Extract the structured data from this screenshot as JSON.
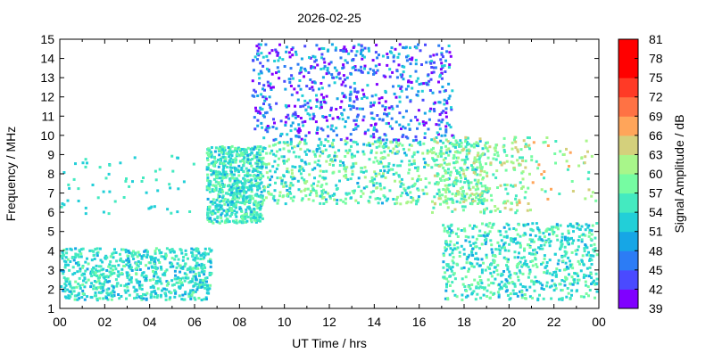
{
  "chart_data": {
    "type": "scatter",
    "subtype": "ionogram-heatmap",
    "title": "2026-02-25",
    "xlabel": "UT Time / hrs",
    "ylabel": "Frequency / MHz",
    "colorbar_label": "Signal Amplitude / dB",
    "xlim": [
      0,
      24
    ],
    "ylim": [
      1,
      15
    ],
    "x_ticks": [
      "00",
      "02",
      "04",
      "06",
      "08",
      "10",
      "12",
      "14",
      "16",
      "18",
      "20",
      "22",
      "00"
    ],
    "y_ticks": [
      "1",
      "2",
      "3",
      "4",
      "5",
      "6",
      "7",
      "8",
      "9",
      "10",
      "11",
      "12",
      "13",
      "14",
      "15"
    ],
    "colorbar_ticks": [
      "39",
      "42",
      "45",
      "48",
      "51",
      "54",
      "57",
      "60",
      "63",
      "66",
      "69",
      "72",
      "75",
      "78",
      "81"
    ],
    "colorbar_colors": [
      "#8000ff",
      "#4a4aff",
      "#2c7cf5",
      "#16a6e6",
      "#22cfd8",
      "#44eac0",
      "#76fca2",
      "#a8f68a",
      "#d4d07c",
      "#ffa55a",
      "#ff7244",
      "#ff3a26",
      "#ff0000",
      "#ff0000"
    ],
    "grid": false,
    "legend": "colorbar-right",
    "regions": [
      {
        "x": [
          0.0,
          6.7
        ],
        "y": [
          1.5,
          4.2
        ],
        "amp": [
          50,
          58
        ],
        "density": "high"
      },
      {
        "x": [
          6.5,
          9.0
        ],
        "y": [
          5.5,
          9.5
        ],
        "amp": [
          50,
          60
        ],
        "density": "high"
      },
      {
        "x": [
          9.0,
          19.0
        ],
        "y": [
          6.5,
          9.8
        ],
        "amp": [
          50,
          63
        ],
        "density": "high"
      },
      {
        "x": [
          8.5,
          17.5
        ],
        "y": [
          9.8,
          14.8
        ],
        "amp": [
          39,
          54
        ],
        "density": "high"
      },
      {
        "x": [
          16.5,
          21.0
        ],
        "y": [
          6.0,
          10.0
        ],
        "amp": [
          54,
          66
        ],
        "density": "medium"
      },
      {
        "x": [
          17.0,
          24.0
        ],
        "y": [
          1.5,
          5.5
        ],
        "amp": [
          50,
          60
        ],
        "density": "high"
      },
      {
        "x": [
          0.0,
          6.0
        ],
        "y": [
          6.0,
          9.0
        ],
        "amp": [
          51,
          57
        ],
        "density": "sparse"
      },
      {
        "x": [
          20.0,
          24.0
        ],
        "y": [
          6.5,
          10.0
        ],
        "amp": [
          54,
          69
        ],
        "density": "sparse"
      }
    ]
  }
}
